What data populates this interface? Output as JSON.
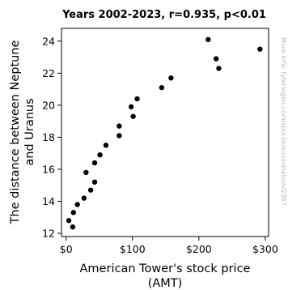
{
  "chart_data": {
    "type": "scatter",
    "title": "Years 2002-2023, r=0.935, p<0.01",
    "xlabel": [
      "American Tower's stock price",
      "(AMT)"
    ],
    "ylabel": [
      "The distance between Neptune",
      "and Uranus"
    ],
    "watermark": "More info: tylervigen.com/spurious/correlation/2367",
    "xlim": [
      -7,
      305
    ],
    "ylim": [
      11.8,
      24.8
    ],
    "xticks": [
      0,
      100,
      200,
      300
    ],
    "xtick_labels": [
      "$0",
      "$100",
      "$200",
      "$300"
    ],
    "yticks": [
      12,
      14,
      16,
      18,
      20,
      22,
      24
    ],
    "ytick_labels": [
      "12",
      "14",
      "16",
      "18",
      "20",
      "22",
      "24"
    ],
    "grid": false,
    "legend": "none",
    "marker_color": "#000000",
    "points": [
      {
        "x": 4,
        "y": 12.8
      },
      {
        "x": 10,
        "y": 12.4
      },
      {
        "x": 11,
        "y": 13.3
      },
      {
        "x": 17,
        "y": 13.8
      },
      {
        "x": 27,
        "y": 14.2
      },
      {
        "x": 37,
        "y": 14.7
      },
      {
        "x": 43,
        "y": 15.2
      },
      {
        "x": 30,
        "y": 15.8
      },
      {
        "x": 43,
        "y": 16.4
      },
      {
        "x": 51,
        "y": 16.9
      },
      {
        "x": 60,
        "y": 17.5
      },
      {
        "x": 80,
        "y": 18.1
      },
      {
        "x": 80,
        "y": 18.7
      },
      {
        "x": 101,
        "y": 19.3
      },
      {
        "x": 98,
        "y": 19.9
      },
      {
        "x": 107,
        "y": 20.4
      },
      {
        "x": 144,
        "y": 21.1
      },
      {
        "x": 158,
        "y": 21.7
      },
      {
        "x": 230,
        "y": 22.3
      },
      {
        "x": 226,
        "y": 22.9
      },
      {
        "x": 292,
        "y": 23.5
      },
      {
        "x": 214,
        "y": 24.1
      }
    ]
  }
}
